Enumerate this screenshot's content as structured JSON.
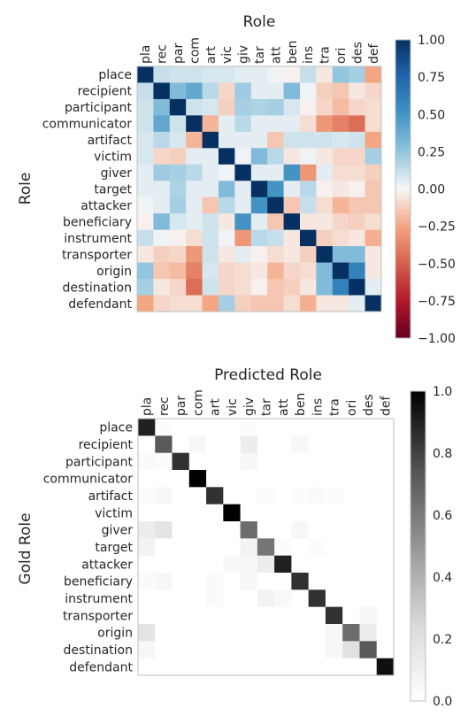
{
  "chart_data": [
    {
      "type": "heatmap",
      "title": "Role",
      "ylabel": "Role",
      "xlabel": "",
      "x_tick_labels": [
        "pla",
        "rec",
        "par",
        "com",
        "art",
        "vic",
        "giv",
        "tar",
        "att",
        "ben",
        "ins",
        "tra",
        "ori",
        "des",
        "def"
      ],
      "y_tick_labels": [
        "place",
        "recipient",
        "participant",
        "communicator",
        "artifact",
        "victim",
        "giver",
        "target",
        "attacker",
        "beneficiary",
        "instrument",
        "transporter",
        "origin",
        "destination",
        "defendant"
      ],
      "colormap": "RdBu",
      "vmin": -1.0,
      "vmax": 1.0,
      "colorbar_ticks": [
        "1.00",
        "0.75",
        "0.50",
        "0.25",
        "0.00",
        "−0.25",
        "−0.50",
        "−0.75",
        "−1.00"
      ],
      "colorbar_values": [
        1.0,
        0.75,
        0.5,
        0.25,
        0.0,
        -0.25,
        -0.5,
        -0.75,
        -1.0
      ],
      "values": [
        [
          1.0,
          0.12,
          0.1,
          0.1,
          0.08,
          0.08,
          0.05,
          0.05,
          0.02,
          -0.02,
          0.12,
          -0.05,
          0.25,
          0.2,
          -0.25
        ],
        [
          0.12,
          1.0,
          0.3,
          0.4,
          0.15,
          -0.1,
          0.22,
          0.05,
          0.05,
          0.3,
          0.02,
          -0.12,
          -0.15,
          -0.05,
          -0.1
        ],
        [
          0.1,
          0.3,
          1.0,
          0.1,
          0.08,
          -0.12,
          0.2,
          0.18,
          0.2,
          0.08,
          -0.02,
          -0.1,
          -0.18,
          -0.1,
          -0.08
        ],
        [
          0.1,
          0.4,
          0.1,
          1.0,
          -0.2,
          0.05,
          0.15,
          0.05,
          0.05,
          0.05,
          -0.08,
          -0.3,
          -0.38,
          -0.45,
          -0.08
        ],
        [
          0.08,
          0.15,
          0.08,
          -0.2,
          1.0,
          0.05,
          0.05,
          0.05,
          -0.15,
          0.1,
          0.1,
          0.1,
          0.08,
          0.1,
          -0.25
        ],
        [
          0.08,
          -0.1,
          -0.12,
          0.05,
          0.05,
          1.0,
          0.02,
          0.3,
          0.15,
          -0.05,
          0.02,
          -0.05,
          -0.1,
          -0.1,
          0.2
        ],
        [
          0.05,
          0.22,
          0.2,
          0.15,
          0.05,
          0.02,
          1.0,
          0.05,
          0.05,
          0.5,
          -0.3,
          0.05,
          -0.08,
          -0.08,
          -0.12
        ],
        [
          0.05,
          0.05,
          0.18,
          0.05,
          0.05,
          0.3,
          0.05,
          1.0,
          0.5,
          0.05,
          0.15,
          -0.02,
          -0.05,
          -0.02,
          -0.15
        ],
        [
          0.02,
          0.05,
          0.2,
          0.05,
          -0.15,
          0.15,
          0.05,
          0.5,
          1.0,
          -0.15,
          0.12,
          -0.08,
          -0.2,
          -0.15,
          -0.15
        ],
        [
          -0.02,
          0.3,
          0.08,
          0.05,
          0.1,
          -0.05,
          0.5,
          0.05,
          -0.15,
          1.0,
          -0.05,
          -0.05,
          -0.1,
          -0.12,
          -0.08
        ],
        [
          0.12,
          0.02,
          -0.02,
          -0.08,
          0.1,
          0.02,
          -0.3,
          0.15,
          0.12,
          -0.05,
          1.0,
          -0.12,
          -0.08,
          -0.05,
          -0.22
        ],
        [
          -0.05,
          -0.12,
          -0.1,
          -0.3,
          0.1,
          -0.05,
          0.05,
          -0.02,
          -0.08,
          -0.05,
          -0.12,
          1.0,
          0.3,
          0.3,
          -0.05
        ],
        [
          0.25,
          -0.15,
          -0.18,
          -0.38,
          0.08,
          -0.1,
          -0.08,
          -0.05,
          -0.2,
          -0.1,
          -0.08,
          0.3,
          1.0,
          0.6,
          -0.05
        ],
        [
          0.2,
          -0.05,
          -0.1,
          -0.45,
          0.1,
          -0.1,
          -0.08,
          -0.02,
          -0.15,
          -0.12,
          -0.05,
          0.3,
          0.6,
          1.0,
          0.05
        ],
        [
          -0.25,
          -0.1,
          -0.08,
          -0.08,
          -0.25,
          0.2,
          -0.12,
          -0.15,
          -0.15,
          -0.08,
          -0.22,
          -0.05,
          -0.05,
          0.05,
          1.0
        ]
      ]
    },
    {
      "type": "heatmap",
      "title": "Predicted Role",
      "ylabel": "Gold Role",
      "xlabel": "",
      "x_tick_labels": [
        "pla",
        "rec",
        "par",
        "com",
        "art",
        "vic",
        "giv",
        "tar",
        "att",
        "ben",
        "ins",
        "tra",
        "ori",
        "des",
        "def"
      ],
      "y_tick_labels": [
        "place",
        "recipient",
        "participant",
        "communicator",
        "artifact",
        "victim",
        "giver",
        "target",
        "attacker",
        "beneficiary",
        "instrument",
        "transporter",
        "origin",
        "destination",
        "defendant"
      ],
      "colormap": "Greys",
      "vmin": 0.0,
      "vmax": 1.0,
      "colorbar_ticks": [
        "1.0",
        "0.8",
        "0.6",
        "0.4",
        "0.2",
        "0.0"
      ],
      "colorbar_values": [
        1.0,
        0.8,
        0.6,
        0.4,
        0.2,
        0.0
      ],
      "values": [
        [
          0.9,
          0.02,
          0,
          0,
          0,
          0,
          0.02,
          0,
          0,
          0,
          0,
          0,
          0,
          0,
          0
        ],
        [
          0,
          0.72,
          0,
          0.05,
          0,
          0,
          0.12,
          0,
          0,
          0.05,
          0,
          0,
          0,
          0,
          0
        ],
        [
          0.03,
          0.02,
          0.85,
          0,
          0,
          0,
          0.05,
          0,
          0,
          0,
          0,
          0,
          0,
          0,
          0
        ],
        [
          0,
          0,
          0,
          1.0,
          0,
          0,
          0,
          0,
          0,
          0,
          0,
          0,
          0,
          0,
          0
        ],
        [
          0.02,
          0.05,
          0,
          0,
          0.85,
          0,
          0,
          0.02,
          0,
          0.02,
          0.03,
          0.02,
          0,
          0,
          0
        ],
        [
          0,
          0,
          0,
          0,
          0,
          1.0,
          0,
          0,
          0,
          0,
          0,
          0,
          0,
          0,
          0
        ],
        [
          0.12,
          0.18,
          0,
          0,
          0,
          0,
          0.65,
          0,
          0,
          0.05,
          0,
          0,
          0,
          0,
          0
        ],
        [
          0.08,
          0,
          0,
          0,
          0,
          0,
          0.08,
          0.62,
          0.02,
          0,
          0.02,
          0,
          0,
          0,
          0
        ],
        [
          0,
          0,
          0,
          0,
          0,
          0.05,
          0.05,
          0.12,
          0.9,
          0,
          0,
          0,
          0,
          0,
          0
        ],
        [
          0.03,
          0.05,
          0,
          0,
          0.03,
          0,
          0.05,
          0,
          0,
          0.85,
          0,
          0,
          0,
          0,
          0
        ],
        [
          0,
          0,
          0,
          0,
          0.03,
          0,
          0,
          0.08,
          0.04,
          0,
          0.85,
          0,
          0,
          0,
          0
        ],
        [
          0,
          0,
          0,
          0,
          0,
          0,
          0,
          0,
          0,
          0,
          0,
          0.85,
          0,
          0.05,
          0
        ],
        [
          0.18,
          0,
          0,
          0,
          0,
          0,
          0,
          0,
          0,
          0,
          0,
          0.05,
          0.65,
          0.12,
          0
        ],
        [
          0.05,
          0,
          0,
          0,
          0,
          0,
          0,
          0,
          0,
          0,
          0,
          0.05,
          0.2,
          0.72,
          0
        ],
        [
          0,
          0,
          0,
          0,
          0,
          0,
          0,
          0,
          0,
          0,
          0,
          0,
          0,
          0,
          0.95
        ]
      ]
    }
  ]
}
